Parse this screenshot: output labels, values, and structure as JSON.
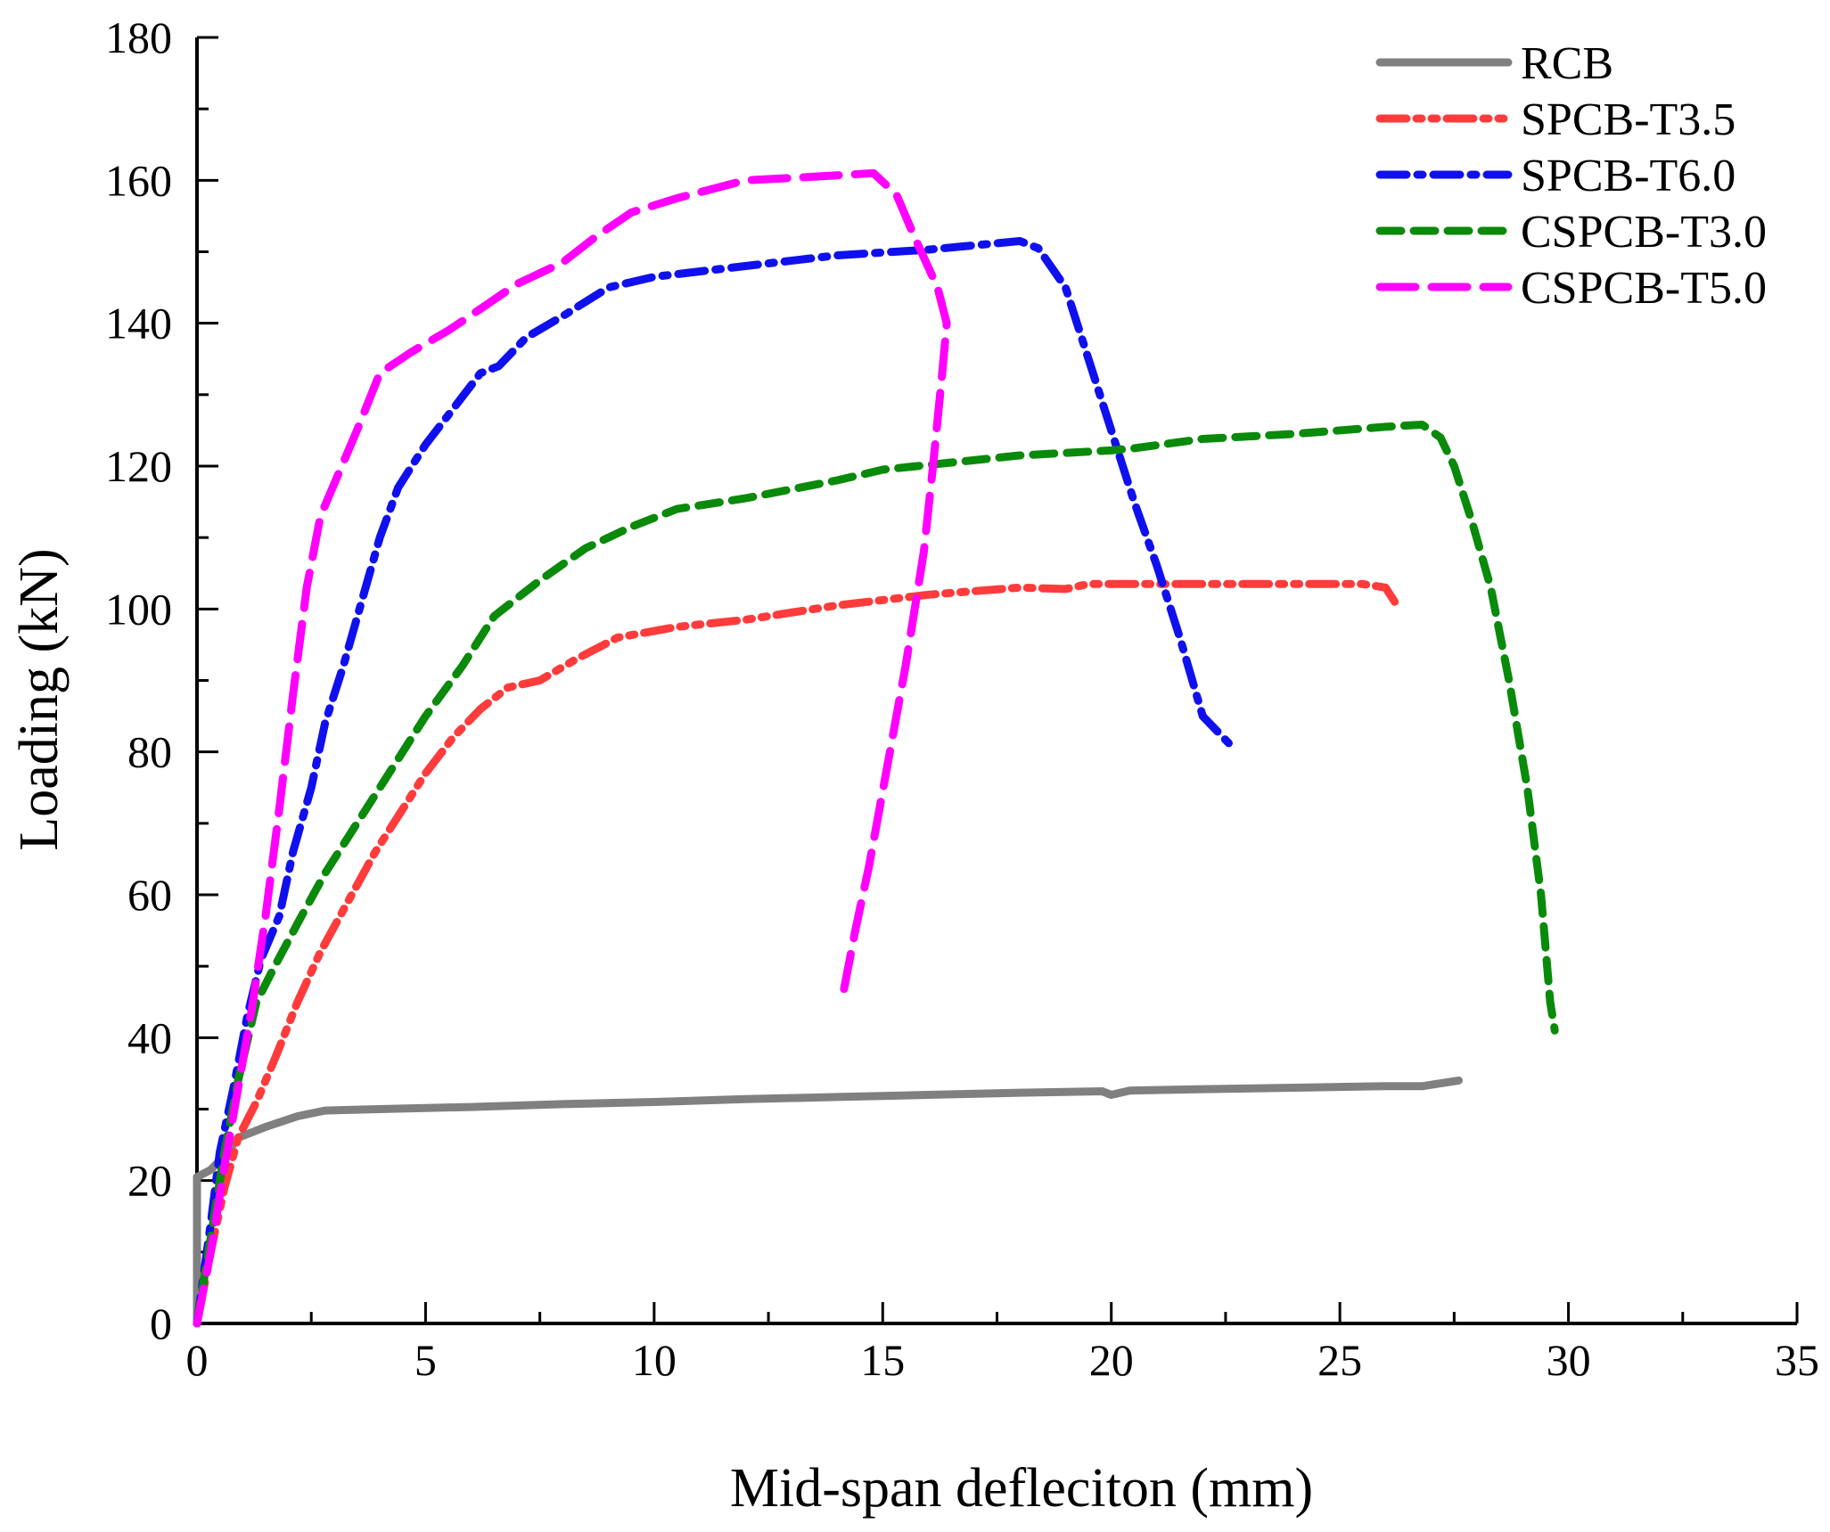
{
  "chart_data": {
    "type": "line",
    "title": "",
    "xlabel": "Mid-span defleciton (mm)",
    "ylabel": "Loading (kN)",
    "xlim": [
      0,
      35
    ],
    "ylim": [
      0,
      180
    ],
    "xticks": [
      0,
      5,
      10,
      15,
      20,
      25,
      30,
      35
    ],
    "yticks": [
      0,
      20,
      40,
      60,
      80,
      100,
      120,
      140,
      160,
      180
    ],
    "grid": false,
    "legend_position": "top-right",
    "series": [
      {
        "name": "RCB",
        "color": "#808080",
        "style": "solid",
        "points": [
          [
            0,
            0
          ],
          [
            0,
            20.5
          ],
          [
            0.3,
            21.5
          ],
          [
            0.6,
            23.5
          ],
          [
            0.9,
            26
          ],
          [
            1.5,
            27.5
          ],
          [
            2.2,
            29
          ],
          [
            2.8,
            29.8
          ],
          [
            4,
            30
          ],
          [
            6,
            30.3
          ],
          [
            8,
            30.7
          ],
          [
            10,
            31
          ],
          [
            12,
            31.4
          ],
          [
            14,
            31.7
          ],
          [
            16,
            32
          ],
          [
            18,
            32.3
          ],
          [
            19.8,
            32.5
          ],
          [
            20,
            32
          ],
          [
            20.4,
            32.6
          ],
          [
            22,
            32.8
          ],
          [
            24,
            33
          ],
          [
            26,
            33.2
          ],
          [
            26.8,
            33.2
          ],
          [
            27.2,
            33.6
          ],
          [
            27.6,
            34
          ]
        ]
      },
      {
        "name": "SPCB-T3.5",
        "color": "#ff3b3b",
        "style": "dash-dot-dot",
        "points": [
          [
            0,
            0
          ],
          [
            0.3,
            10
          ],
          [
            0.6,
            19
          ],
          [
            0.9,
            26
          ],
          [
            1.3,
            31
          ],
          [
            1.7,
            37
          ],
          [
            2.2,
            45
          ],
          [
            2.7,
            52
          ],
          [
            3.3,
            59
          ],
          [
            3.9,
            66
          ],
          [
            4.4,
            71
          ],
          [
            5,
            77
          ],
          [
            5.6,
            82
          ],
          [
            6.2,
            86
          ],
          [
            6.8,
            89
          ],
          [
            7.5,
            90
          ],
          [
            8.3,
            93
          ],
          [
            9.2,
            96
          ],
          [
            10.5,
            97.5
          ],
          [
            12,
            98.5
          ],
          [
            14,
            100.5
          ],
          [
            16,
            102
          ],
          [
            18,
            103
          ],
          [
            19,
            102.8
          ],
          [
            19.5,
            103.5
          ],
          [
            22,
            103.5
          ],
          [
            24,
            103.5
          ],
          [
            25.5,
            103.5
          ],
          [
            26,
            103
          ],
          [
            26.3,
            100
          ]
        ]
      },
      {
        "name": "SPCB-T6.0",
        "color": "#1010ee",
        "style": "dash-dot",
        "points": [
          [
            0,
            0
          ],
          [
            0.3,
            14
          ],
          [
            0.5,
            24
          ],
          [
            0.8,
            33
          ],
          [
            1.1,
            43
          ],
          [
            1.4,
            51
          ],
          [
            1.8,
            57
          ],
          [
            2.1,
            66
          ],
          [
            2.5,
            75
          ],
          [
            2.8,
            84
          ],
          [
            3.2,
            92
          ],
          [
            3.6,
            101
          ],
          [
            4,
            110
          ],
          [
            4.4,
            117
          ],
          [
            5,
            123
          ],
          [
            5.6,
            128
          ],
          [
            6.2,
            133
          ],
          [
            6.6,
            134
          ],
          [
            7.2,
            138
          ],
          [
            8,
            141
          ],
          [
            9,
            145
          ],
          [
            10,
            146.5
          ],
          [
            12,
            148
          ],
          [
            14,
            149.5
          ],
          [
            16,
            150.3
          ],
          [
            18,
            151.5
          ],
          [
            18.4,
            150.5
          ],
          [
            19,
            145
          ],
          [
            19.5,
            135
          ],
          [
            20,
            125
          ],
          [
            20.5,
            115
          ],
          [
            21,
            106
          ],
          [
            21.5,
            96
          ],
          [
            22,
            85
          ],
          [
            22.6,
            81
          ]
        ]
      },
      {
        "name": "CSPCB-T3.0",
        "color": "#0a8a0a",
        "style": "dashed",
        "points": [
          [
            0,
            0
          ],
          [
            0.3,
            12
          ],
          [
            0.6,
            24
          ],
          [
            0.9,
            34
          ],
          [
            1.3,
            45
          ],
          [
            1.7,
            50
          ],
          [
            2.2,
            56
          ],
          [
            2.8,
            63
          ],
          [
            3.5,
            70
          ],
          [
            4.2,
            77
          ],
          [
            5,
            85
          ],
          [
            5.8,
            92
          ],
          [
            6.5,
            99
          ],
          [
            7.5,
            104
          ],
          [
            8.5,
            108.5
          ],
          [
            9.5,
            111.5
          ],
          [
            10.5,
            114
          ],
          [
            12,
            115.5
          ],
          [
            14,
            118
          ],
          [
            15,
            119.5
          ],
          [
            16.5,
            120.5
          ],
          [
            18,
            121.5
          ],
          [
            20,
            122.2
          ],
          [
            20.5,
            122.5
          ],
          [
            22,
            123.8
          ],
          [
            24,
            124.5
          ],
          [
            26,
            125.5
          ],
          [
            26.8,
            125.8
          ],
          [
            27.2,
            124
          ],
          [
            27.5,
            120
          ],
          [
            27.9,
            112
          ],
          [
            28.3,
            103
          ],
          [
            28.7,
            90
          ],
          [
            29.1,
            75
          ],
          [
            29.4,
            60
          ],
          [
            29.6,
            45
          ],
          [
            29.7,
            41
          ]
        ]
      },
      {
        "name": "CSPCB-T5.0",
        "color": "#ff00ff",
        "style": "long-dash",
        "points": [
          [
            0,
            0
          ],
          [
            0.3,
            10
          ],
          [
            0.6,
            22
          ],
          [
            0.9,
            33
          ],
          [
            1.2,
            44
          ],
          [
            1.5,
            57
          ],
          [
            1.8,
            72
          ],
          [
            2.1,
            88
          ],
          [
            2.4,
            103
          ],
          [
            2.7,
            113
          ],
          [
            3.1,
            119
          ],
          [
            3.5,
            125
          ],
          [
            4,
            133
          ],
          [
            4.7,
            136
          ],
          [
            5.5,
            139
          ],
          [
            6.2,
            142
          ],
          [
            7,
            145.5
          ],
          [
            8,
            148.5
          ],
          [
            8.7,
            152
          ],
          [
            9.5,
            155.5
          ],
          [
            10.5,
            157.5
          ],
          [
            12,
            160
          ],
          [
            13.5,
            160.5
          ],
          [
            14.8,
            161
          ],
          [
            15.3,
            158
          ],
          [
            15.7,
            152
          ],
          [
            16.2,
            145
          ],
          [
            16.4,
            140
          ],
          [
            16.3,
            133
          ],
          [
            16.1,
            120
          ],
          [
            15.9,
            108
          ],
          [
            15.5,
            92
          ],
          [
            15.1,
            78
          ],
          [
            14.7,
            64
          ],
          [
            14.4,
            55
          ],
          [
            14.1,
            45
          ]
        ]
      }
    ]
  }
}
